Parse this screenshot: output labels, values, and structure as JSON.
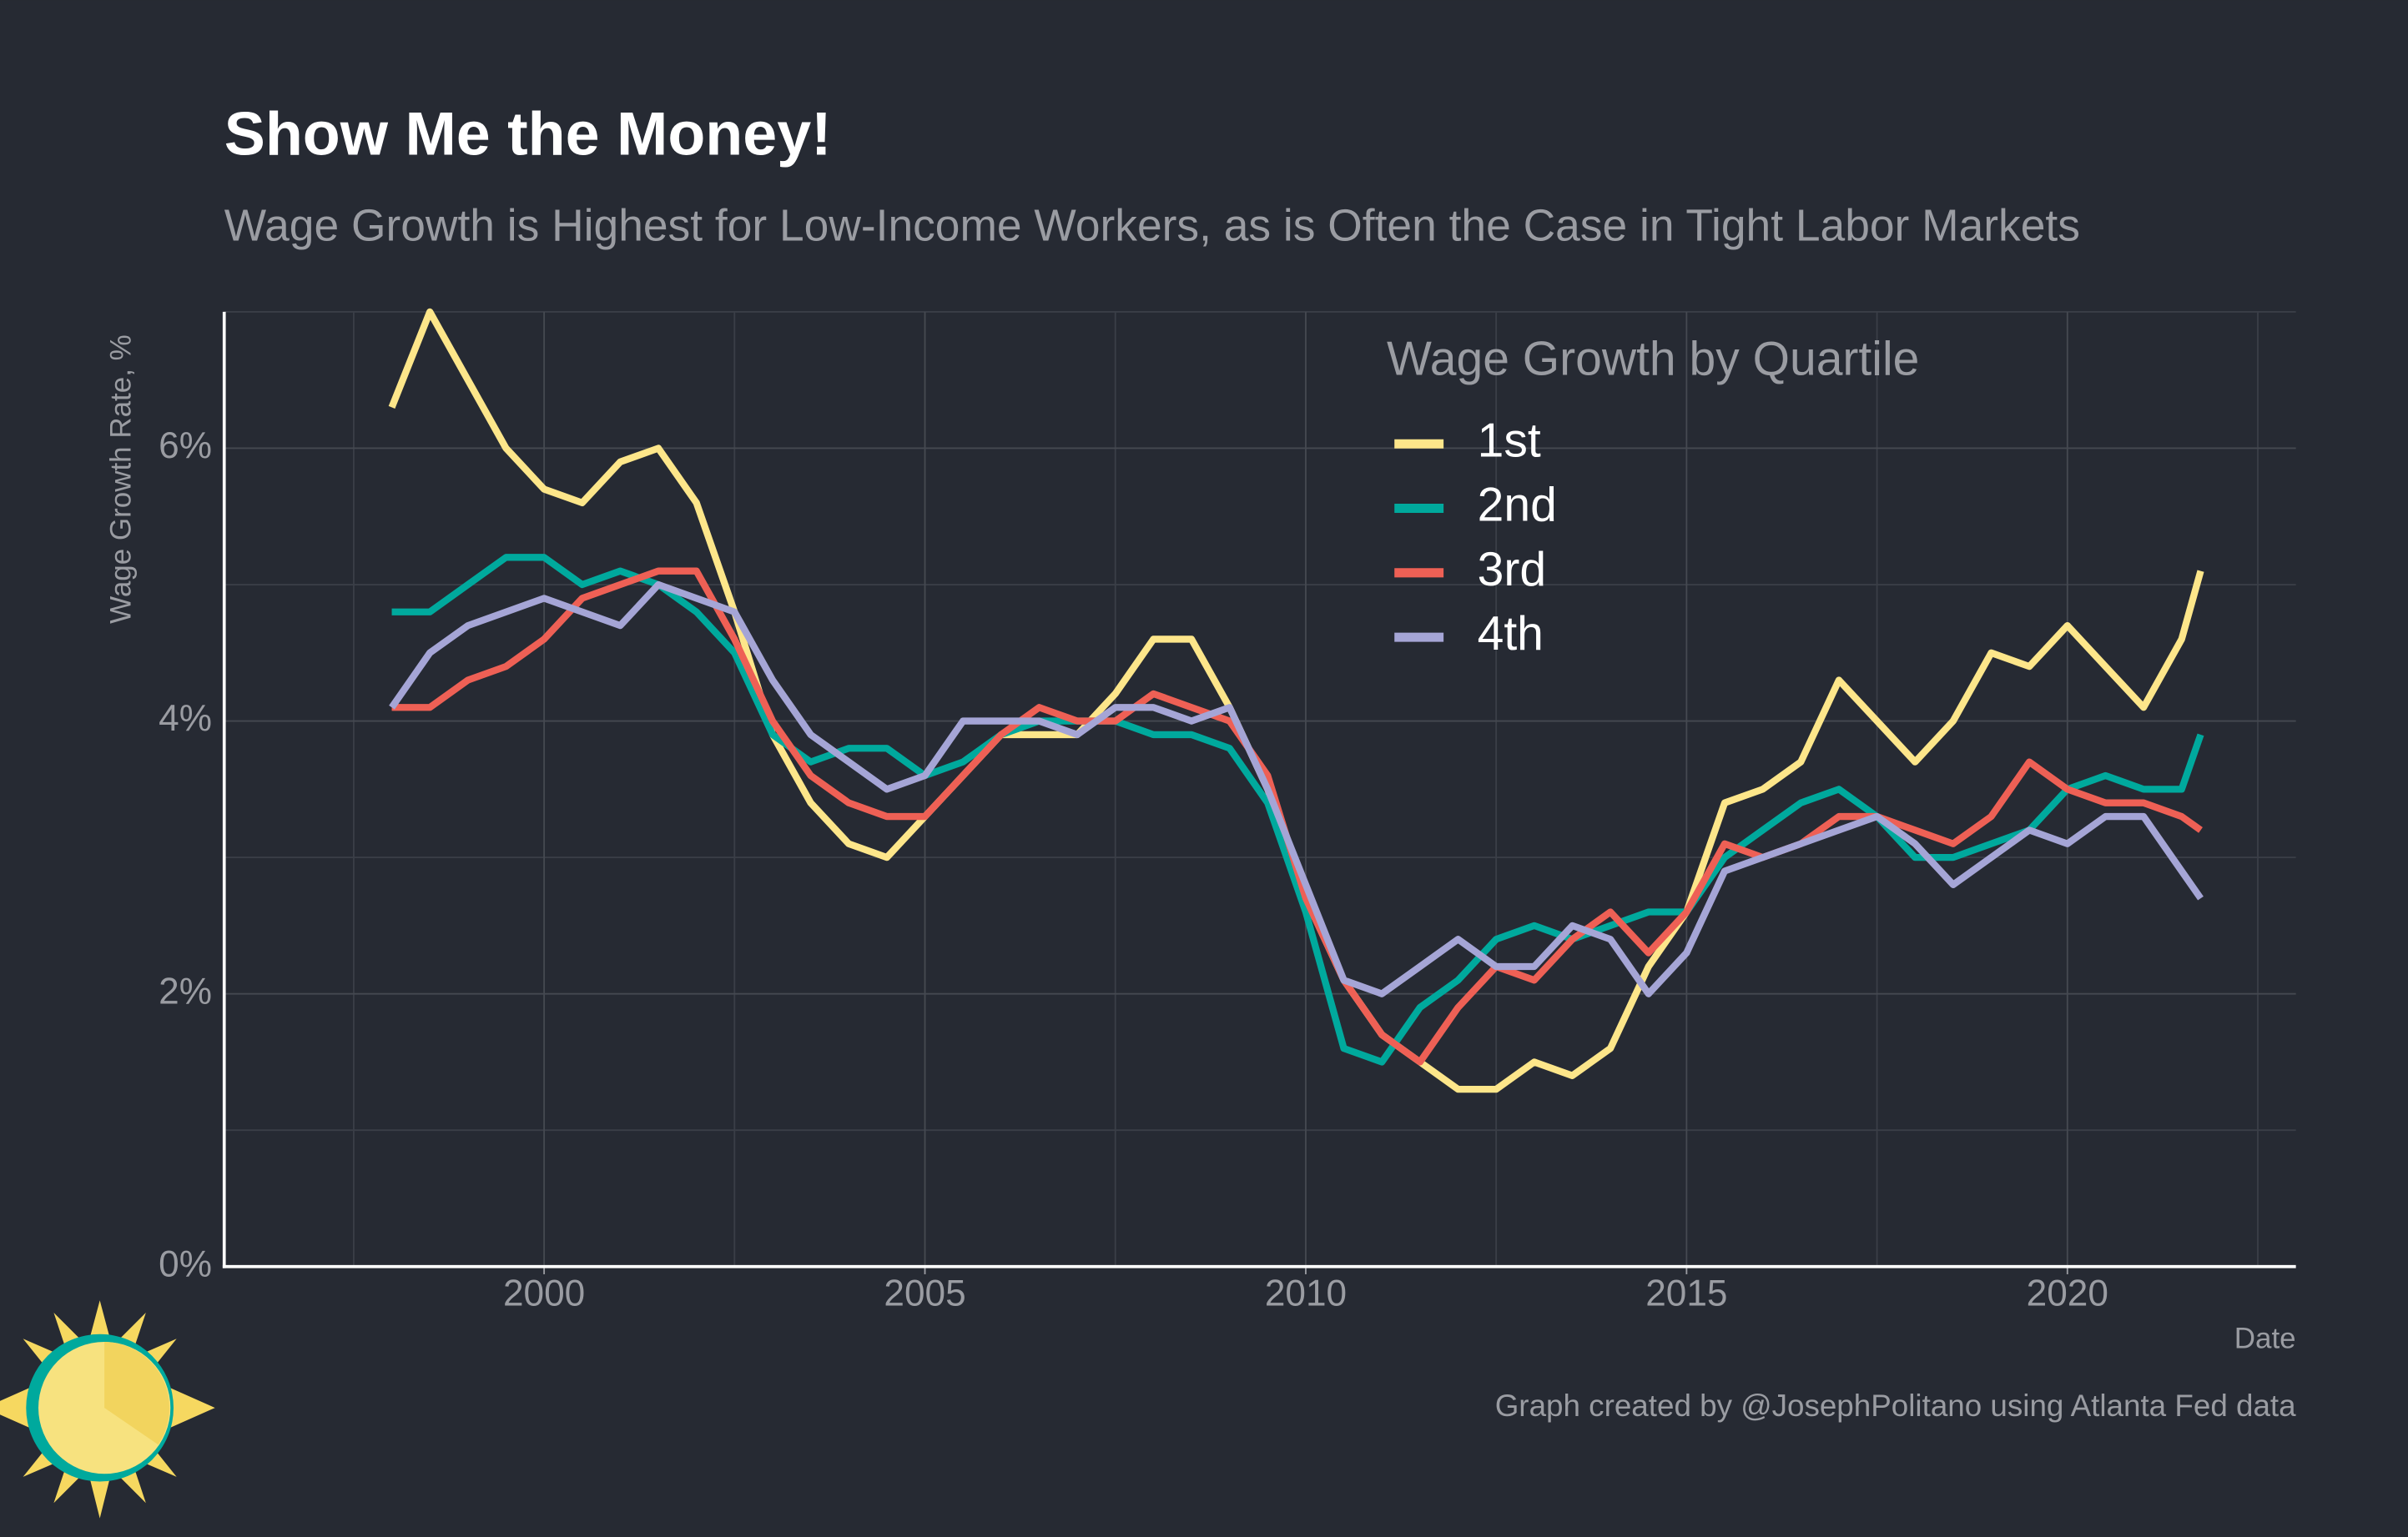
{
  "chart_data": {
    "type": "line",
    "title": "Show Me the Money!",
    "subtitle": "Wage Growth is Highest for Low-Income Workers, as is Often the Case in Tight Labor Markets",
    "x_label": "Date",
    "y_label": "Wage Growth Rate, %",
    "caption": "Graph created by @JosephPolitano using Atlanta Fed data",
    "legend_title": "Wage Growth by Quartile",
    "legend_position": "top-right",
    "grid": true,
    "xlim": [
      1995.8,
      2023.0
    ],
    "xticks": [
      2000,
      2005,
      2010,
      2015,
      2020
    ],
    "x_minor_grid": [
      1997.5,
      2002.5,
      2007.5,
      2012.5,
      2017.5,
      2022.5
    ],
    "ylim": [
      0,
      7
    ],
    "yticks": [
      {
        "value": 0,
        "label": "0%"
      },
      {
        "value": 2,
        "label": "2%"
      },
      {
        "value": 4,
        "label": "4%"
      },
      {
        "value": 6,
        "label": "6%"
      }
    ],
    "y_minor_grid": [
      1,
      3,
      5,
      7
    ],
    "x": [
      1998.0,
      1998.5,
      1999.0,
      1999.5,
      2000.0,
      2000.5,
      2001.0,
      2001.5,
      2002.0,
      2002.5,
      2003.0,
      2003.5,
      2004.0,
      2004.5,
      2005.0,
      2005.5,
      2006.0,
      2006.5,
      2007.0,
      2007.5,
      2008.0,
      2008.5,
      2009.0,
      2009.5,
      2010.0,
      2010.5,
      2011.0,
      2011.5,
      2012.0,
      2012.5,
      2013.0,
      2013.5,
      2014.0,
      2014.5,
      2015.0,
      2015.5,
      2016.0,
      2016.5,
      2017.0,
      2017.5,
      2018.0,
      2018.5,
      2019.0,
      2019.5,
      2020.0,
      2020.5,
      2021.0,
      2021.5,
      2021.75
    ],
    "series": [
      {
        "name": "1st",
        "color": "#fde68a",
        "values": [
          6.3,
          7.0,
          6.5,
          6.0,
          5.7,
          5.6,
          5.9,
          6.0,
          5.6,
          4.8,
          3.9,
          3.4,
          3.1,
          3.0,
          3.3,
          3.6,
          3.9,
          3.9,
          3.9,
          4.2,
          4.6,
          4.6,
          4.1,
          3.5,
          2.7,
          2.1,
          1.7,
          1.5,
          1.3,
          1.3,
          1.5,
          1.4,
          1.6,
          2.2,
          2.6,
          3.4,
          3.5,
          3.7,
          4.3,
          4.0,
          3.7,
          4.0,
          4.5,
          4.4,
          4.7,
          4.4,
          4.1,
          4.6,
          5.1
        ]
      },
      {
        "name": "2nd",
        "color": "#00a99d",
        "values": [
          4.8,
          4.8,
          5.0,
          5.2,
          5.2,
          5.0,
          5.1,
          5.0,
          4.8,
          4.5,
          3.9,
          3.7,
          3.8,
          3.8,
          3.6,
          3.7,
          3.9,
          4.0,
          4.0,
          4.0,
          3.9,
          3.9,
          3.8,
          3.4,
          2.6,
          1.6,
          1.5,
          1.9,
          2.1,
          2.4,
          2.5,
          2.4,
          2.5,
          2.6,
          2.6,
          3.0,
          3.2,
          3.4,
          3.5,
          3.3,
          3.0,
          3.0,
          3.1,
          3.2,
          3.5,
          3.6,
          3.5,
          3.5,
          3.9
        ]
      },
      {
        "name": "3rd",
        "color": "#ee6055",
        "values": [
          4.1,
          4.1,
          4.3,
          4.4,
          4.6,
          4.9,
          5.0,
          5.1,
          5.1,
          4.6,
          4.0,
          3.6,
          3.4,
          3.3,
          3.3,
          3.6,
          3.9,
          4.1,
          4.0,
          4.0,
          4.2,
          4.1,
          4.0,
          3.6,
          2.7,
          2.1,
          1.7,
          1.5,
          1.9,
          2.2,
          2.1,
          2.4,
          2.6,
          2.3,
          2.6,
          3.1,
          3.0,
          3.1,
          3.3,
          3.3,
          3.2,
          3.1,
          3.3,
          3.7,
          3.5,
          3.4,
          3.4,
          3.3,
          3.2
        ]
      },
      {
        "name": "4th",
        "color": "#a5a5d6",
        "values": [
          4.1,
          4.5,
          4.7,
          4.8,
          4.9,
          4.8,
          4.7,
          5.0,
          4.9,
          4.8,
          4.3,
          3.9,
          3.7,
          3.5,
          3.6,
          4.0,
          4.0,
          4.0,
          3.9,
          4.1,
          4.1,
          4.0,
          4.1,
          3.5,
          2.8,
          2.1,
          2.0,
          2.2,
          2.4,
          2.2,
          2.2,
          2.5,
          2.4,
          2.0,
          2.3,
          2.9,
          3.0,
          3.1,
          3.2,
          3.3,
          3.1,
          2.8,
          3.0,
          3.2,
          3.1,
          3.3,
          3.3,
          2.9,
          2.7
        ]
      }
    ]
  }
}
